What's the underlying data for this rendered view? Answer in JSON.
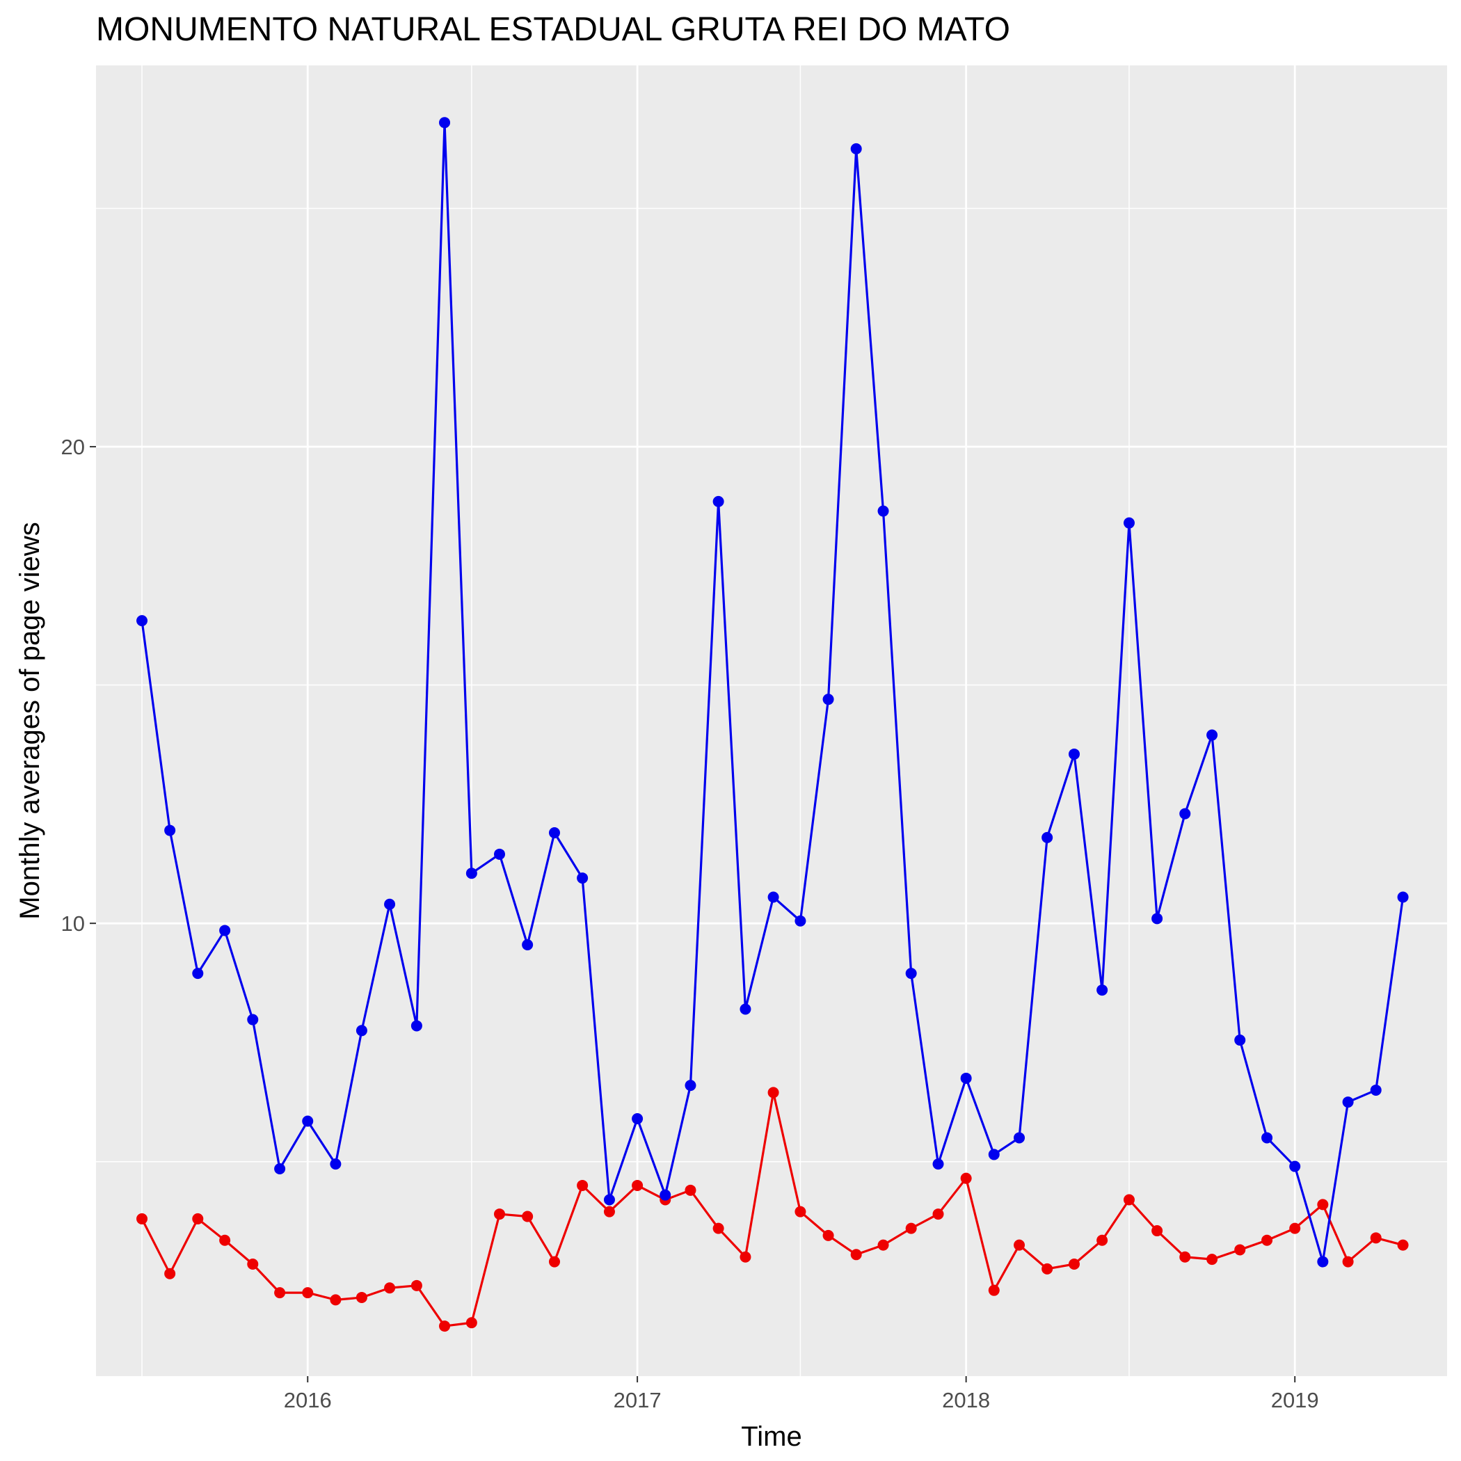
{
  "chart_data": {
    "type": "line",
    "title": "MONUMENTO NATURAL ESTADUAL GRUTA REI DO MATO",
    "xlabel": "Time",
    "ylabel": "Monthly averages of page views",
    "x_ticks": [
      "2016",
      "2017",
      "2018",
      "2019"
    ],
    "x_tick_dates": [
      "2016-01-01",
      "2017-01-01",
      "2018-01-01",
      "2019-01-01"
    ],
    "y_ticks": [
      10,
      20
    ],
    "xlim": [
      "2015-05-11",
      "2019-06-19"
    ],
    "ylim": [
      0.5,
      28.0
    ],
    "grid": true,
    "background": "#ebebeb",
    "x": [
      "2015-07-01",
      "2015-08-01",
      "2015-09-01",
      "2015-10-01",
      "2015-11-01",
      "2015-12-01",
      "2016-01-01",
      "2016-02-01",
      "2016-03-01",
      "2016-04-01",
      "2016-05-01",
      "2016-06-01",
      "2016-07-01",
      "2016-08-01",
      "2016-09-01",
      "2016-10-01",
      "2016-11-01",
      "2016-12-01",
      "2017-01-01",
      "2017-02-01",
      "2017-03-01",
      "2017-04-01",
      "2017-05-01",
      "2017-06-01",
      "2017-07-01",
      "2017-08-01",
      "2017-09-01",
      "2017-10-01",
      "2017-11-01",
      "2017-12-01",
      "2018-01-01",
      "2018-02-01",
      "2018-03-01",
      "2018-04-01",
      "2018-05-01",
      "2018-06-01",
      "2018-07-01",
      "2018-08-01",
      "2018-09-01",
      "2018-10-01",
      "2018-11-01",
      "2018-12-01",
      "2019-01-01",
      "2019-02-01",
      "2019-03-01",
      "2019-04-01",
      "2019-05-01"
    ],
    "series": [
      {
        "color": "#0000ee",
        "values": [
          16.35,
          11.95,
          8.95,
          9.85,
          7.98,
          4.85,
          5.85,
          4.95,
          7.75,
          10.4,
          7.85,
          26.8,
          11.05,
          11.45,
          9.55,
          11.9,
          10.95,
          4.2,
          5.9,
          4.3,
          6.6,
          18.85,
          8.2,
          10.55,
          10.05,
          14.7,
          26.25,
          18.65,
          8.95,
          4.95,
          6.75,
          5.15,
          5.5,
          11.8,
          13.55,
          8.6,
          18.4,
          10.1,
          12.3,
          13.95,
          7.55,
          5.5,
          4.9,
          2.9,
          6.25,
          6.5,
          10.55
        ]
      },
      {
        "color": "#ee0000",
        "values": [
          3.8,
          2.65,
          3.8,
          3.35,
          2.85,
          2.25,
          2.25,
          2.1,
          2.15,
          2.35,
          2.4,
          1.55,
          1.62,
          3.9,
          3.85,
          2.9,
          4.5,
          3.95,
          4.5,
          4.2,
          4.4,
          3.6,
          3.0,
          6.45,
          3.95,
          3.45,
          3.05,
          3.25,
          3.6,
          3.9,
          4.65,
          2.3,
          3.25,
          2.75,
          2.85,
          3.35,
          4.2,
          3.55,
          3.0,
          2.95,
          3.15,
          3.35,
          3.6,
          4.1,
          2.9,
          3.4,
          3.25
        ]
      }
    ]
  }
}
